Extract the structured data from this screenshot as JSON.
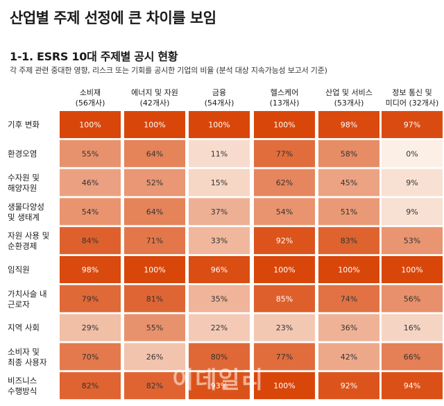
{
  "page": {
    "title": "산업별 주제 선정에 큰 차이를 보임",
    "subtitle": "1-1. ESRS 10대 주제별 공시 현황",
    "note": "각 주제 관련 중대한 영향, 리스크 또는 기회를 공시한 기업의 비율 (분석 대상 지속가능성 보고서 기준)",
    "watermark": "이데일리"
  },
  "colors": {
    "low": "#fbefe6",
    "high": "#d9460a",
    "text_dark": "#333333",
    "text_light": "#ffffff"
  },
  "chart_data": {
    "type": "heatmap",
    "title": "1-1. ESRS 10대 주제별 공시 현황",
    "unit": "%",
    "columns": [
      {
        "line1": "소비재",
        "line2": "(56개사)"
      },
      {
        "line1": "에너지 및 자원",
        "line2": "(42개사)"
      },
      {
        "line1": "금융",
        "line2": "(54개사)"
      },
      {
        "line1": "헬스케어",
        "line2": "(13개사)"
      },
      {
        "line1": "산업 및 서비스",
        "line2": "(53개사)"
      },
      {
        "line1": "정보 통신 및",
        "line2": "미디어 (32개사)"
      }
    ],
    "rows": [
      {
        "label": [
          "기후 변화"
        ],
        "values": [
          100,
          100,
          100,
          100,
          98,
          97
        ]
      },
      {
        "label": [
          "환경오염"
        ],
        "values": [
          55,
          64,
          11,
          77,
          58,
          0
        ]
      },
      {
        "label": [
          "수자원 및",
          "해양자원"
        ],
        "values": [
          46,
          52,
          15,
          62,
          45,
          9
        ]
      },
      {
        "label": [
          "생물다양성",
          "및 생태계"
        ],
        "values": [
          54,
          64,
          37,
          54,
          51,
          9
        ]
      },
      {
        "label": [
          "자원 사용 및",
          "순환경제"
        ],
        "values": [
          84,
          71,
          33,
          92,
          83,
          53
        ]
      },
      {
        "label": [
          "임직원"
        ],
        "values": [
          98,
          100,
          96,
          100,
          100,
          100
        ]
      },
      {
        "label": [
          "가치사슬 내",
          "근로자"
        ],
        "values": [
          79,
          81,
          35,
          85,
          74,
          56
        ]
      },
      {
        "label": [
          "지역 사회"
        ],
        "values": [
          29,
          55,
          22,
          23,
          36,
          16
        ]
      },
      {
        "label": [
          "소비자 및",
          "최종 사용자"
        ],
        "values": [
          70,
          26,
          80,
          77,
          42,
          66
        ]
      },
      {
        "label": [
          "비즈니스",
          "수행방식"
        ],
        "values": [
          82,
          82,
          93,
          100,
          92,
          94
        ]
      }
    ]
  }
}
